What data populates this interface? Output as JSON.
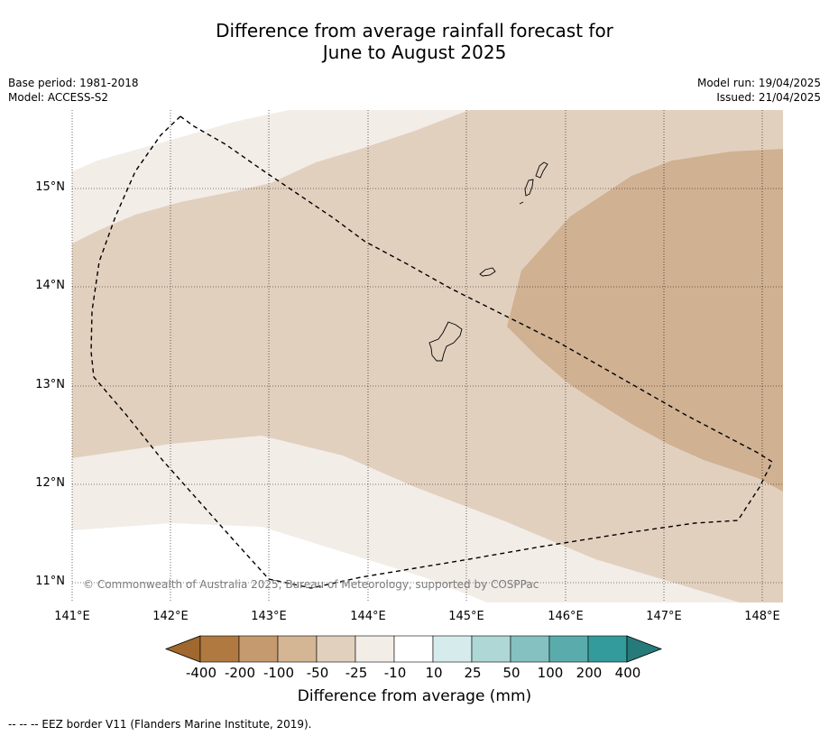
{
  "title_line1": "Difference from average rainfall forecast for",
  "title_line2": "June to August 2025",
  "meta_left": {
    "base_period": "Base period: 1981-2018",
    "model": "Model: ACCESS-S2"
  },
  "meta_right": {
    "model_run": "Model run: 19/04/2025",
    "issued": "Issued: 21/04/2025"
  },
  "map": {
    "copyright": "© Commonwealth of Australia 2025, Bureau of Meteorology, supported by COSPPac",
    "lat_labels": [
      "15°N",
      "14°N",
      "13°N",
      "12°N",
      "11°N"
    ],
    "lon_labels": [
      "141°E",
      "142°E",
      "143°E",
      "144°E",
      "145°E",
      "146°E",
      "147°E",
      "148°E"
    ],
    "lat_range": [
      10.8,
      15.8
    ],
    "lon_range": [
      141.0,
      148.2
    ]
  },
  "colorbar": {
    "ticks": [
      "-400",
      "-200",
      "-100",
      "-50",
      "-25",
      "-10",
      "10",
      "25",
      "50",
      "100",
      "200",
      "400"
    ],
    "colors": [
      "#a0672e",
      "#b07940",
      "#c49a6e",
      "#d4b594",
      "#e2d0bf",
      "#f3ede8",
      "#ffffff",
      "#d6ecec",
      "#aed7d6",
      "#85c1c1",
      "#5aacac",
      "#339b9b",
      "#267a7a"
    ],
    "label": "Difference from average (mm)"
  },
  "footnote": "--  --  -- EEZ border V11 (Flanders Marine Institute, 2019)."
}
